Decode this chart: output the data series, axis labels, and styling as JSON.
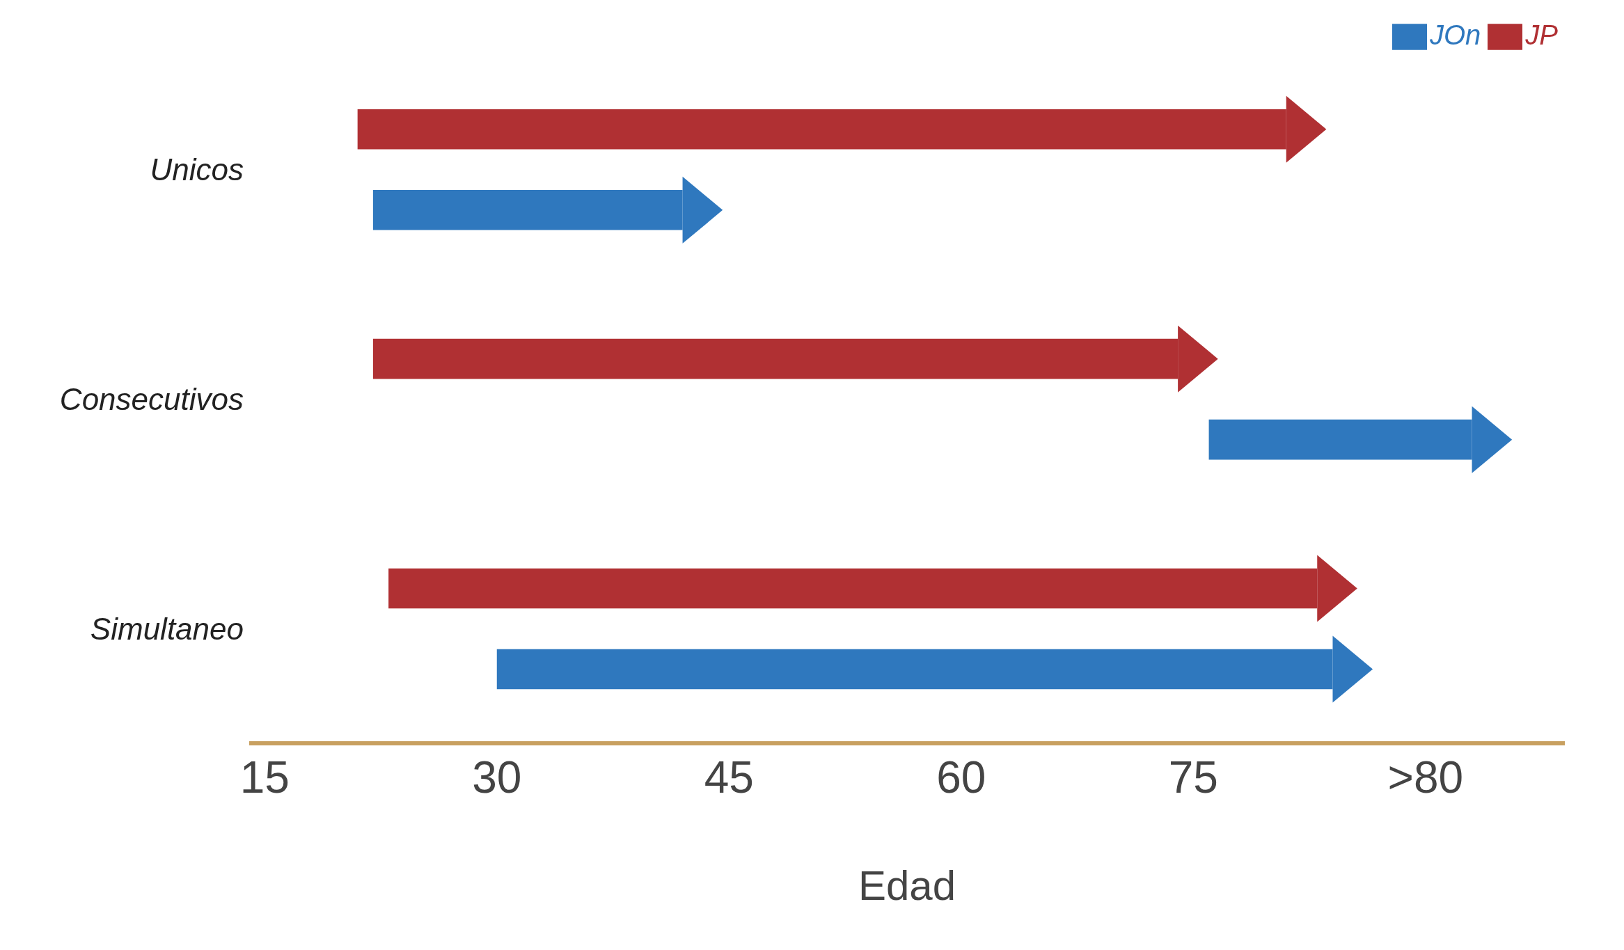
{
  "chart_data": {
    "type": "bar",
    "orientation": "horizontal",
    "xlabel": "Edad",
    "categories": [
      "Unicos",
      "Consecutivos",
      "Simultaneo"
    ],
    "series": [
      {
        "name": "JP",
        "color": "#b03033",
        "base": [
          21,
          22,
          23
        ],
        "values": [
          60,
          52,
          60
        ]
      },
      {
        "name": "JOn",
        "color": "#2f78be",
        "base": [
          22,
          76,
          30
        ],
        "values": [
          20,
          17,
          54
        ]
      }
    ],
    "xlim": [
      14,
      99
    ],
    "xticks": [
      15,
      30,
      45,
      60,
      75,
      {
        "value": 90,
        "label": ">80"
      }
    ],
    "grid": false,
    "legend": "top right"
  }
}
